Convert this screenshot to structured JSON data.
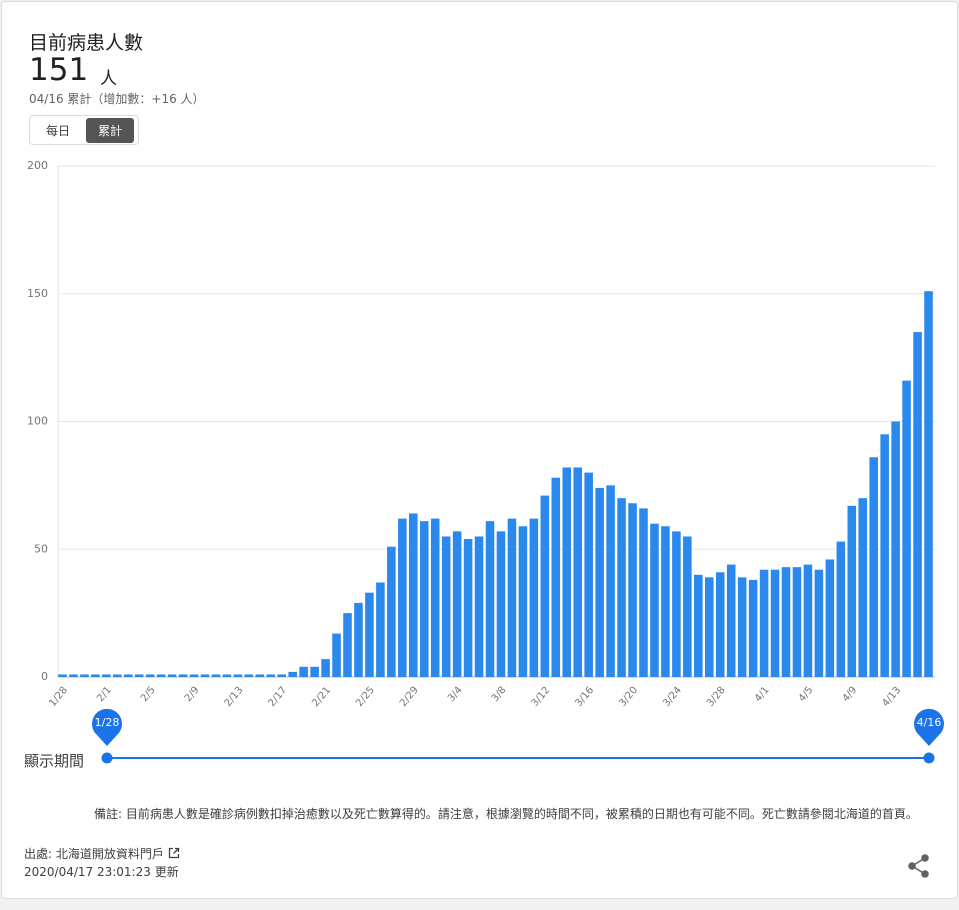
{
  "header": {
    "title": "目前病患人數",
    "value": "151",
    "unit": "人",
    "subtitle": "04/16 累計（增加數：+16 人）"
  },
  "toggle": {
    "options": [
      "每日",
      "累計"
    ],
    "selected": 1
  },
  "chart_data": {
    "type": "bar",
    "categories": [
      "1/28",
      null,
      null,
      null,
      "2/1",
      null,
      null,
      null,
      "2/5",
      null,
      null,
      null,
      "2/9",
      null,
      null,
      null,
      "2/13",
      null,
      null,
      null,
      "2/17",
      null,
      null,
      null,
      "2/21",
      null,
      null,
      null,
      "2/25",
      null,
      null,
      null,
      "2/29",
      null,
      null,
      null,
      "3/4",
      null,
      null,
      null,
      "3/8",
      null,
      null,
      null,
      "3/12",
      null,
      null,
      null,
      "3/16",
      null,
      null,
      null,
      "3/20",
      null,
      null,
      null,
      "3/24",
      null,
      null,
      null,
      "3/28",
      null,
      null,
      null,
      "4/1",
      null,
      null,
      null,
      "4/5",
      null,
      null,
      null,
      "4/9",
      null,
      null,
      null,
      "4/13",
      null,
      null,
      null
    ],
    "values": [
      1,
      1,
      1,
      1,
      1,
      1,
      1,
      1,
      1,
      1,
      1,
      1,
      1,
      1,
      1,
      1,
      1,
      1,
      1,
      1,
      1,
      2,
      4,
      4,
      7,
      17,
      25,
      29,
      33,
      37,
      51,
      62,
      64,
      61,
      62,
      55,
      57,
      54,
      55,
      61,
      57,
      62,
      59,
      62,
      71,
      78,
      82,
      82,
      80,
      74,
      75,
      70,
      68,
      66,
      60,
      59,
      57,
      55,
      40,
      39,
      41,
      44,
      39,
      38,
      42,
      42,
      43,
      43,
      44,
      42,
      46,
      53,
      67,
      70,
      86,
      95,
      100,
      116,
      135,
      151
    ],
    "color": "#2b88ec",
    "ylim": [
      0,
      200
    ],
    "yticks": [
      0,
      50,
      100,
      150,
      200
    ],
    "grid": true
  },
  "slider": {
    "label": "顯示期間",
    "start": "1/28",
    "end": "4/16"
  },
  "note": "備註:  目前病患人數是確診病例數扣掉治癒數以及死亡數算得的。請注意，根據瀏覽的時間不同，被累積的日期也有可能不同。死亡數請參閱北海道的首頁。",
  "footer": {
    "source": "出處: 北海道開放資料門戶",
    "updated": "2020/04/17 23:01:23 更新"
  }
}
